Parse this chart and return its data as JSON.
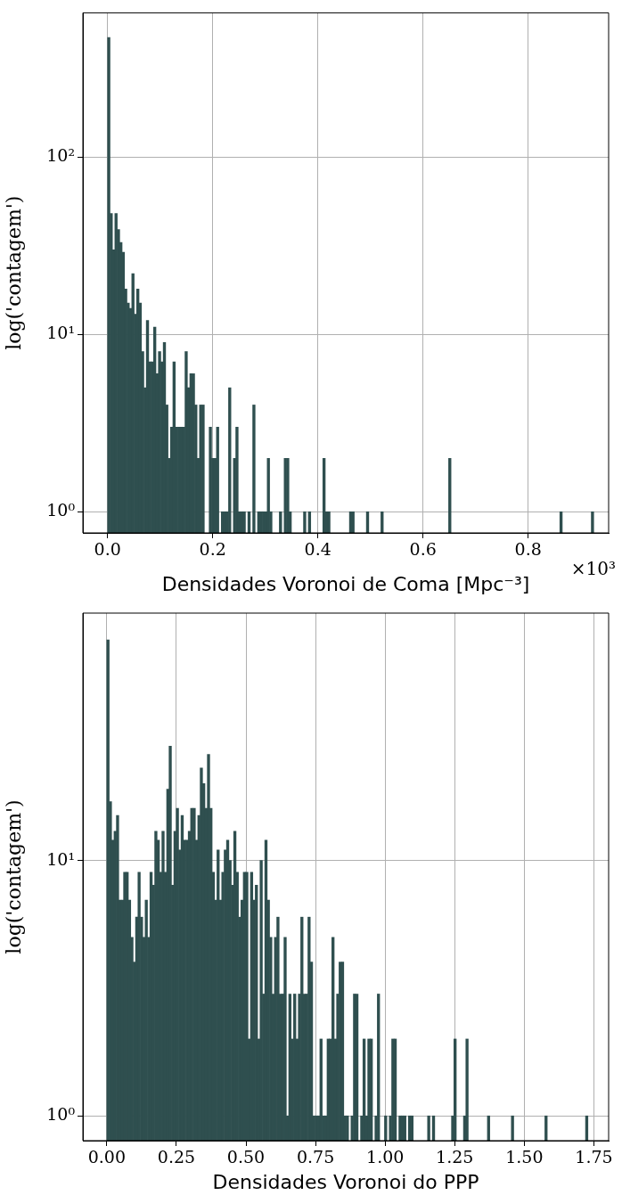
{
  "chart_data": [
    {
      "type": "histogram",
      "xlabel": "Densidades Voronoi de Coma [Mpc⁻³]",
      "ylabel": "log('contagem')",
      "annotations": [
        "×10³"
      ],
      "color": "#2f4f4f",
      "log": "y",
      "grid": true,
      "xlim": [
        -0.047,
        0.953
      ],
      "xticks": [
        {
          "value": 0,
          "label": "0.0"
        },
        {
          "value": 0.2,
          "label": "0.2"
        },
        {
          "value": 0.4,
          "label": "0.4"
        },
        {
          "value": 0.6,
          "label": "0.6"
        },
        {
          "value": 0.8,
          "label": "0.8"
        }
      ],
      "ylim": [
        0.76,
        650
      ],
      "yticks": [
        {
          "value": 1,
          "label": "10⁰"
        },
        {
          "value": 10,
          "label": "10¹"
        },
        {
          "value": 100,
          "label": "10²"
        }
      ],
      "bins": [
        0,
        0.0046,
        0.0092,
        0.0138,
        0.0184,
        0.023,
        0.0276,
        0.0322,
        0.0368,
        0.0414,
        0.046,
        0.0506,
        0.0552,
        0.0598,
        0.0644,
        0.069,
        0.0736,
        0.0782,
        0.0828,
        0.0874,
        0.092,
        0.0966,
        0.1012,
        0.1058,
        0.1104,
        0.115,
        0.1196,
        0.1242,
        0.1288,
        0.1334,
        0.138,
        0.1426,
        0.1472,
        0.1518,
        0.1564,
        0.161,
        0.1656,
        0.1702,
        0.1748,
        0.1794,
        0.184,
        0.1886,
        0.1932,
        0.1978,
        0.2024,
        0.207,
        0.2116,
        0.2162,
        0.2208,
        0.2254,
        0.23,
        0.2346,
        0.2392,
        0.2438,
        0.2484,
        0.253,
        0.2576,
        0.2622,
        0.2668,
        0.2714,
        0.276,
        0.2806,
        0.2852,
        0.2898,
        0.2944,
        0.299,
        0.3036,
        0.3082,
        0.3128,
        0.3174,
        0.322,
        0.3266,
        0.3312,
        0.3358,
        0.3404,
        0.345,
        0.3496,
        0.3542,
        0.3588,
        0.3634,
        0.368,
        0.3726,
        0.3772,
        0.3818,
        0.3864,
        0.391,
        0.3956,
        0.4002,
        0.4048,
        0.4094,
        0.414,
        0.4186,
        0.4232,
        0.4278,
        0.4324,
        0.437,
        0.4416,
        0.4462,
        0.4508,
        0.4554,
        0.46,
        0.4646,
        0.4692,
        0.4738,
        0.4784,
        0.483,
        0.4876,
        0.4922,
        0.4968,
        0.5014,
        0.506,
        0.5106,
        0.5152,
        0.5198,
        0.5244,
        0.529,
        0.5336,
        0.5382,
        0.5428,
        0.5474,
        0.552,
        0.5566,
        0.5612,
        0.5658,
        0.5704,
        0.575,
        0.5796,
        0.5842,
        0.5888,
        0.5934,
        0.598,
        0.6026,
        0.6072,
        0.6118,
        0.6164,
        0.621,
        0.6256,
        0.6302,
        0.6348,
        0.6394,
        0.644,
        0.6486,
        0.6532,
        0.6578,
        0.6624,
        0.667,
        0.6716,
        0.6762,
        0.6808,
        0.6854,
        0.69,
        0.6946,
        0.6992,
        0.7038,
        0.7084,
        0.713,
        0.7176,
        0.7222,
        0.7268,
        0.7314,
        0.736,
        0.7406,
        0.7452,
        0.7498,
        0.7544,
        0.759,
        0.7636,
        0.7682,
        0.7728,
        0.7774,
        0.782,
        0.7866,
        0.7912,
        0.7958,
        0.8004,
        0.805,
        0.8096,
        0.8142,
        0.8188,
        0.8234,
        0.828,
        0.8326,
        0.8372,
        0.8418,
        0.8464,
        0.851,
        0.8556,
        0.8602,
        0.8648,
        0.8694,
        0.874,
        0.8786,
        0.8832,
        0.8878,
        0.8924,
        0.897,
        0.9016,
        0.9062,
        0.9108,
        0.9154,
        0.92,
        0.9246,
        0.9292
      ],
      "values": [
        472,
        48,
        30,
        48,
        39,
        33,
        29,
        18,
        15,
        14,
        22,
        13,
        18,
        15,
        8,
        5,
        12,
        7,
        7,
        11,
        6,
        8,
        7,
        9,
        4,
        2,
        3,
        7,
        3,
        3,
        3,
        3,
        8,
        5,
        6,
        6,
        4,
        2,
        4,
        4,
        null,
        null,
        3,
        2,
        2,
        3,
        null,
        1,
        1,
        1,
        5,
        null,
        2,
        3,
        1,
        1,
        1,
        null,
        1,
        null,
        4,
        null,
        1,
        1,
        1,
        1,
        2,
        1,
        null,
        null,
        null,
        1,
        null,
        2,
        2,
        1,
        null,
        null,
        null,
        null,
        null,
        1,
        null,
        1,
        null,
        null,
        null,
        null,
        null,
        2,
        1,
        1,
        null,
        null,
        null,
        null,
        null,
        null,
        null,
        null,
        1,
        1,
        null,
        null,
        null,
        null,
        null,
        1,
        null,
        null,
        null,
        null,
        null,
        1,
        null,
        null,
        null,
        null,
        null,
        null,
        null,
        null,
        null,
        null,
        null,
        null,
        null,
        null,
        null,
        null,
        null,
        null,
        null,
        null,
        null,
        null,
        null,
        null,
        null,
        null,
        null,
        2,
        null,
        null,
        null,
        null,
        null,
        null,
        null,
        null,
        null,
        null,
        null,
        null,
        null,
        null,
        null,
        null,
        null,
        null,
        null,
        null,
        null,
        null,
        null,
        null,
        null,
        null,
        null,
        null,
        null,
        null,
        null,
        null,
        null,
        null,
        null,
        null,
        null,
        null,
        null,
        null,
        null,
        null,
        null,
        null,
        null,
        1,
        null,
        null,
        null,
        null,
        null,
        null,
        null,
        null,
        null,
        null,
        null,
        null,
        1,
        null
      ]
    },
    {
      "type": "histogram",
      "xlabel": "Densidades Voronoi do PPP",
      "ylabel": "log('contagem')",
      "color": "#2f4f4f",
      "log": "y",
      "grid": true,
      "xlim": [
        -0.086,
        1.803
      ],
      "xticks": [
        {
          "value": 0,
          "label": "0.00"
        },
        {
          "value": 0.25,
          "label": "0.25"
        },
        {
          "value": 0.5,
          "label": "0.50"
        },
        {
          "value": 0.75,
          "label": "0.75"
        },
        {
          "value": 1,
          "label": "1.00"
        },
        {
          "value": 1.25,
          "label": "1.25"
        },
        {
          "value": 1.5,
          "label": "1.50"
        },
        {
          "value": 1.75,
          "label": "1.75"
        }
      ],
      "ylim": [
        0.8,
        93
      ],
      "yticks": [
        {
          "value": 1,
          "label": "10⁰"
        },
        {
          "value": 10,
          "label": "10¹"
        }
      ],
      "bins": [
        0,
        0.0086,
        0.0172,
        0.0258,
        0.0344,
        0.043,
        0.0516,
        0.0602,
        0.0688,
        0.0774,
        0.086,
        0.0946,
        0.1032,
        0.1118,
        0.1204,
        0.129,
        0.1376,
        0.1462,
        0.1548,
        0.1634,
        0.172,
        0.1806,
        0.1892,
        0.1978,
        0.2064,
        0.215,
        0.2236,
        0.2322,
        0.2408,
        0.2494,
        0.258,
        0.2666,
        0.2752,
        0.2838,
        0.2924,
        0.301,
        0.3096,
        0.3182,
        0.3268,
        0.3354,
        0.344,
        0.3526,
        0.3612,
        0.3698,
        0.3784,
        0.387,
        0.3956,
        0.4042,
        0.4128,
        0.4214,
        0.43,
        0.4386,
        0.4472,
        0.4558,
        0.4644,
        0.473,
        0.4816,
        0.4902,
        0.4988,
        0.5074,
        0.516,
        0.5246,
        0.5332,
        0.5418,
        0.5504,
        0.559,
        0.5676,
        0.5762,
        0.5848,
        0.5934,
        0.602,
        0.6106,
        0.6192,
        0.6278,
        0.6364,
        0.645,
        0.6536,
        0.6622,
        0.6708,
        0.6794,
        0.688,
        0.6966,
        0.7052,
        0.7138,
        0.7224,
        0.731,
        0.7396,
        0.7482,
        0.7568,
        0.7654,
        0.774,
        0.7826,
        0.7912,
        0.7998,
        0.8084,
        0.817,
        0.8256,
        0.8342,
        0.8428,
        0.8514,
        0.86,
        0.8686,
        0.8772,
        0.8858,
        0.8944,
        0.903,
        0.9116,
        0.9202,
        0.9288,
        0.9374,
        0.946,
        0.9546,
        0.9632,
        0.9718,
        0.9804,
        0.989,
        0.9976,
        1.0062,
        1.0148,
        1.0234,
        1.032,
        1.0406,
        1.0492,
        1.0578,
        1.0664,
        1.075,
        1.0836,
        1.0922,
        1.1008,
        1.1094,
        1.118,
        1.1266,
        1.1352,
        1.1438,
        1.1524,
        1.161,
        1.1696,
        1.1782,
        1.1868,
        1.1954,
        1.204,
        1.2126,
        1.2212,
        1.2298,
        1.2384,
        1.247,
        1.2556,
        1.2642,
        1.2728,
        1.2814,
        1.29,
        1.2986,
        1.3072,
        1.3158,
        1.3244,
        1.333,
        1.3416,
        1.3502,
        1.3588,
        1.3674,
        1.376,
        1.3846,
        1.3932,
        1.4018,
        1.4104,
        1.419,
        1.4276,
        1.4362,
        1.4448,
        1.4534,
        1.462,
        1.4706,
        1.4792,
        1.4878,
        1.4964,
        1.505,
        1.5136,
        1.5222,
        1.5308,
        1.5394,
        1.548,
        1.5566,
        1.5652,
        1.5738,
        1.5824,
        1.591,
        1.5996,
        1.6082,
        1.6168,
        1.6254,
        1.634,
        1.6426,
        1.6512,
        1.6598,
        1.6684,
        1.677,
        1.6856,
        1.6942,
        1.7028,
        1.7114,
        1.72,
        1.7286
      ],
      "values": [
        73,
        17,
        12,
        13,
        15,
        7,
        7,
        9,
        9,
        7,
        5,
        4,
        6,
        9,
        6,
        5,
        7,
        5,
        9,
        8,
        13,
        12,
        9,
        13,
        9,
        19,
        28,
        8,
        13,
        16,
        11,
        15,
        12,
        12,
        13,
        16,
        16,
        12,
        15,
        23,
        20,
        16,
        26,
        16,
        9,
        7,
        11,
        7,
        9,
        11,
        12,
        10,
        8,
        13,
        9,
        6,
        7,
        9,
        9,
        2,
        9,
        7,
        8,
        2,
        10,
        3,
        12,
        7,
        5,
        3,
        5,
        6,
        3,
        3,
        5,
        1,
        3,
        2,
        3,
        2,
        3,
        6,
        3,
        3,
        6,
        4,
        1,
        1,
        1,
        2,
        1,
        1,
        2,
        2,
        5,
        2,
        3,
        4,
        4,
        1,
        1,
        null,
        1,
        3,
        3,
        null,
        1,
        2,
        1,
        2,
        2,
        null,
        1,
        3,
        null,
        null,
        1,
        null,
        1,
        2,
        2,
        null,
        1,
        1,
        1,
        null,
        1,
        1,
        null,
        null,
        null,
        null,
        null,
        null,
        1,
        null,
        1,
        null,
        null,
        null,
        null,
        null,
        null,
        null,
        1,
        2,
        null,
        null,
        null,
        1,
        2,
        null,
        null,
        null,
        null,
        null,
        null,
        null,
        null,
        1,
        null,
        null,
        null,
        null,
        null,
        null,
        null,
        null,
        null,
        1,
        null,
        null,
        null,
        null,
        null,
        null,
        null,
        null,
        null,
        null,
        null,
        null,
        null,
        1,
        null,
        null,
        null,
        null,
        null,
        null,
        null,
        null,
        null,
        null,
        null,
        null,
        null,
        null,
        null,
        null,
        1
      ]
    }
  ]
}
